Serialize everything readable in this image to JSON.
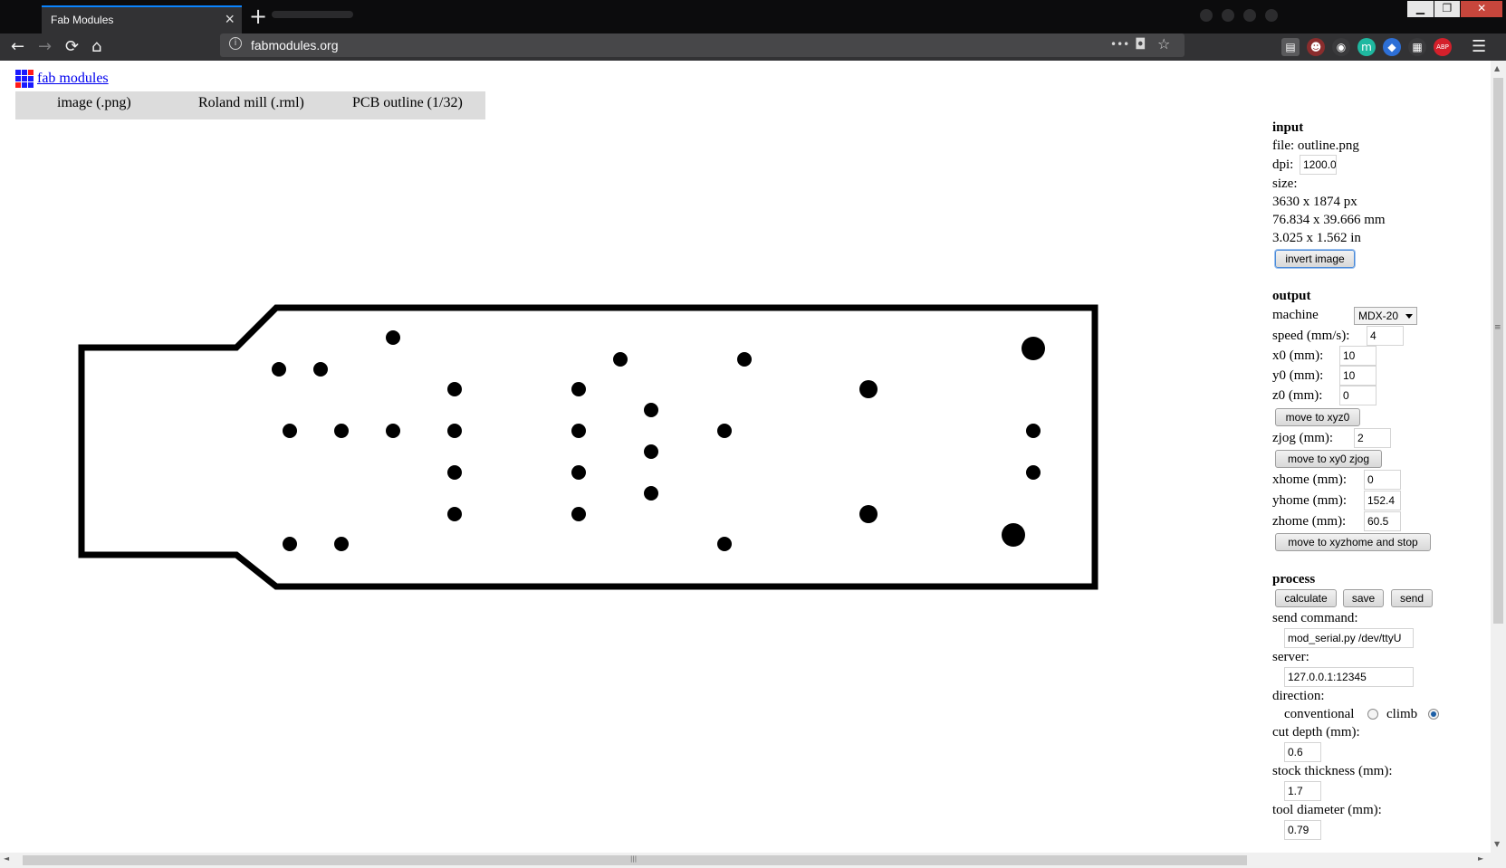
{
  "browser": {
    "tab_title": "Fab Modules",
    "tab_close": "×",
    "new_tab": "+",
    "url": "fabmodules.org",
    "nav_back": "←",
    "nav_forward": "→",
    "nav_reload": "⟳",
    "nav_home": "⌂",
    "url_info": "i",
    "url_more": "•••",
    "url_pocket": "◘",
    "url_star": "☆",
    "menu": "☰",
    "window_min": "▁",
    "window_max": "❐",
    "window_close": "✕",
    "extensions": [
      {
        "name": "reader-view-icon",
        "label": "▤",
        "color": "#5a5a5c"
      },
      {
        "name": "avatar-extension-icon",
        "label": "☻",
        "color": "#8a2d2d"
      },
      {
        "name": "color-extension-icon",
        "label": "◉",
        "color": "#3a3a3c"
      },
      {
        "name": "m-extension-icon",
        "label": "m",
        "color": "#1fb8a0"
      },
      {
        "name": "shield-extension-icon",
        "label": "◆",
        "color": "#2d6fd6"
      },
      {
        "name": "grid-extension-icon",
        "label": "▦",
        "color": "#3a3a3c"
      },
      {
        "name": "adblock-extension-icon",
        "label": "ABP",
        "color": "#d4202b"
      }
    ]
  },
  "colors": {
    "logo": [
      "#1a1aff",
      "#1a1aff",
      "#ff1a1a",
      "#1a1aff",
      "#1a1aff",
      "#1a1aff",
      "#ff1a1a",
      "#1a1aff",
      "#1a1aff"
    ]
  },
  "app": {
    "title_link": "fab modules",
    "modules": [
      "image (.png)",
      "Roland mill (.rml)",
      "PCB outline (1/32)"
    ]
  },
  "panel": {
    "input": {
      "heading": "input",
      "file_label": "file:",
      "file_value": "outline.png",
      "dpi_label": "dpi:",
      "dpi_value": "1200.0",
      "size_label": "size:",
      "size_px": "3630 x 1874 px",
      "size_mm": "76.834 x 39.666 mm",
      "size_in": "3.025 x 1.562 in",
      "invert_button": "invert image"
    },
    "output": {
      "heading": "output",
      "machine_label": "machine",
      "machine_value": "MDX-20",
      "speed_label": "speed (mm/s):",
      "speed_value": "4",
      "x0_label": "x0 (mm):",
      "x0_value": "10",
      "y0_label": "y0 (mm):",
      "y0_value": "10",
      "z0_label": "z0 (mm):",
      "z0_value": "0",
      "move_xyz0_button": "move to xyz0",
      "zjog_label": "zjog (mm):",
      "zjog_value": "2",
      "move_xy0_zjog_button": "move to xy0 zjog",
      "xhome_label": "xhome (mm):",
      "xhome_value": "0",
      "yhome_label": "yhome (mm):",
      "yhome_value": "152.4",
      "zhome_label": "zhome (mm):",
      "zhome_value": "60.5",
      "move_home_button": "move to xyzhome and stop"
    },
    "process": {
      "heading": "process",
      "calculate_button": "calculate",
      "save_button": "save",
      "send_button": "send",
      "send_command_label": "send command:",
      "send_command_value": "mod_serial.py /dev/ttyU",
      "server_label": "server:",
      "server_value": "127.0.0.1:12345",
      "direction_label": "direction:",
      "conventional_label": "conventional",
      "climb_label": "climb",
      "direction_selected": "climb",
      "cut_depth_label": "cut depth (mm):",
      "cut_depth_value": "0.6",
      "stock_label": "stock thickness (mm):",
      "stock_value": "1.7",
      "tool_label": "tool diameter (mm):",
      "tool_value": "0.79"
    }
  },
  "scrollbars": {
    "up": "▲",
    "down": "▼",
    "left": "◄",
    "right": "►",
    "grip": "≡",
    "hgrip": "|||"
  }
}
